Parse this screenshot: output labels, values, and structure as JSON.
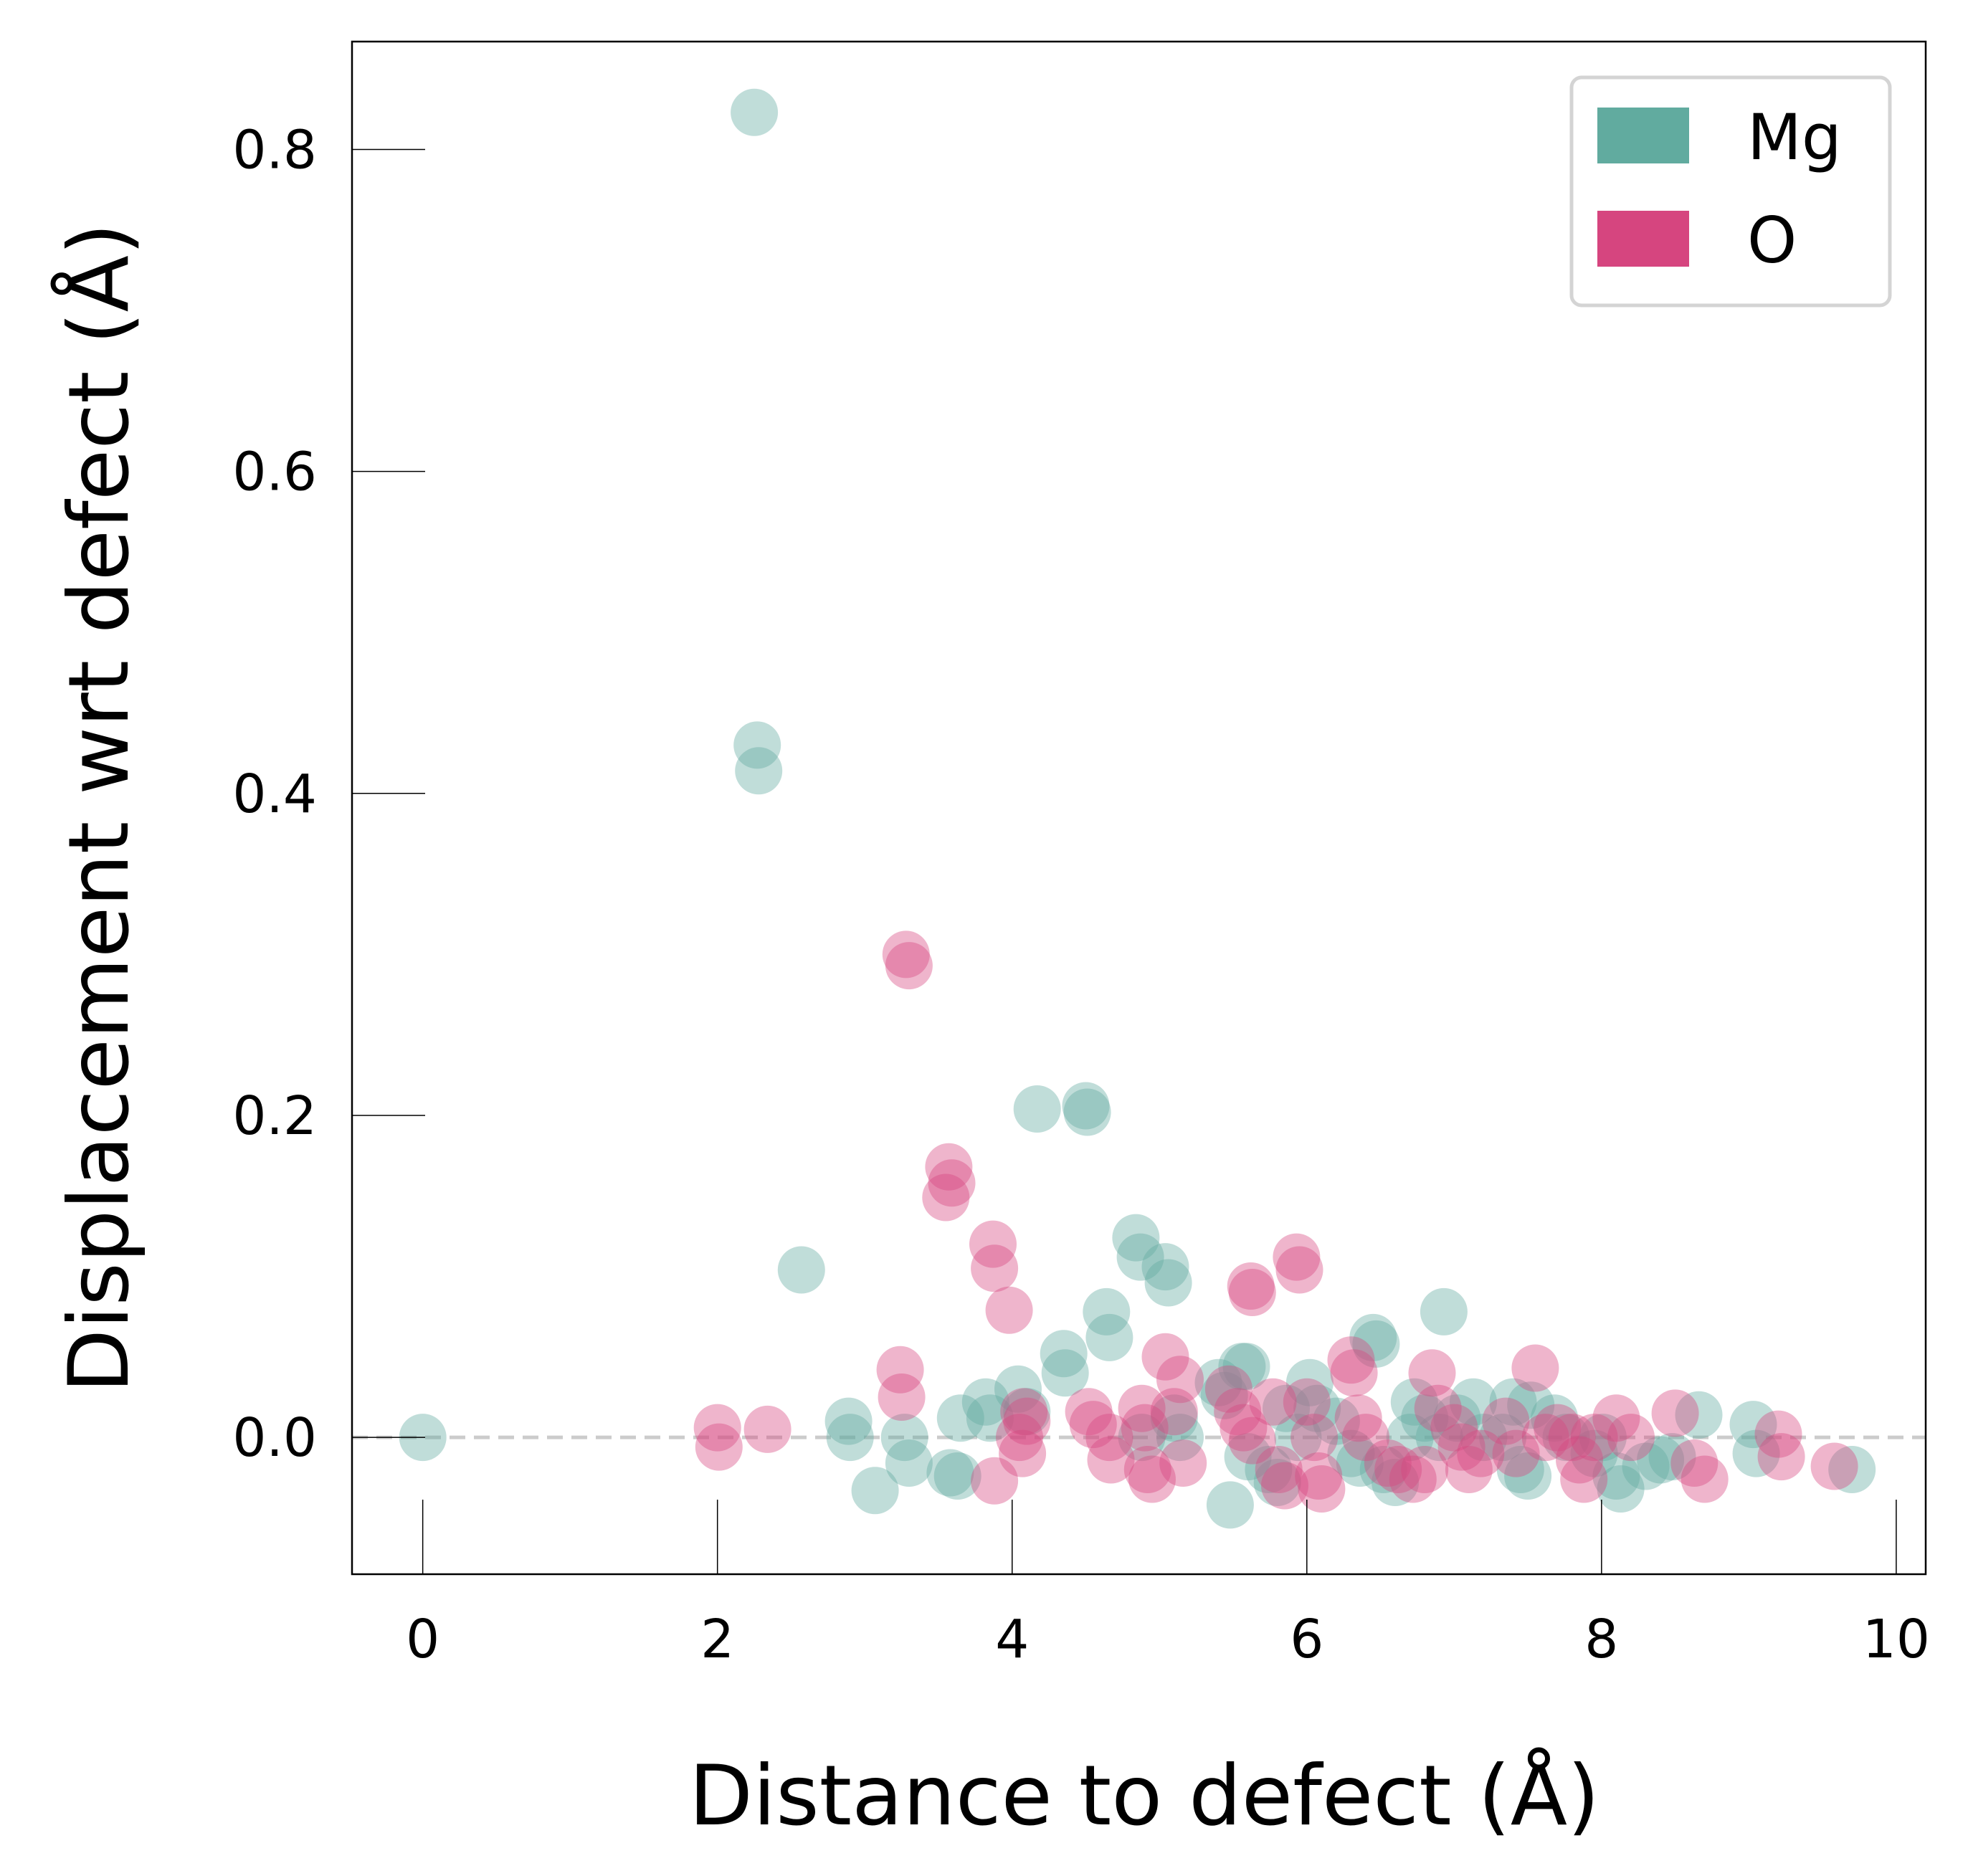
{
  "chart_data": {
    "type": "scatter",
    "title": "",
    "xlabel": "Distance to defect (Å)",
    "ylabel": "Displacement wrt defect (Å)",
    "xlim": [
      -0.48,
      10.2
    ],
    "ylim": [
      -0.085,
      0.867
    ],
    "xticks": [
      0,
      2,
      4,
      6,
      8,
      10
    ],
    "xtick_labels": [
      "0",
      "2",
      "4",
      "6",
      "8",
      "10"
    ],
    "yticks": [
      0.0,
      0.2,
      0.4,
      0.6,
      0.8
    ],
    "ytick_labels": [
      "0.0",
      "0.2",
      "0.4",
      "0.6",
      "0.8"
    ],
    "grid": false,
    "reference_line": {
      "y": 0.0,
      "style": "dashed",
      "color": "#cccccc"
    },
    "legend": {
      "position": "top-right"
    },
    "series": [
      {
        "name": "Mg",
        "color": "#61ab9f",
        "points": [
          [
            0.0,
            0.0
          ],
          [
            2.25,
            0.823
          ],
          [
            2.27,
            0.43
          ],
          [
            2.28,
            0.414
          ],
          [
            2.57,
            0.104
          ],
          [
            2.89,
            0.01
          ],
          [
            2.9,
            0.0
          ],
          [
            3.07,
            -0.033
          ],
          [
            3.27,
            0.0
          ],
          [
            3.3,
            -0.016
          ],
          [
            3.58,
            -0.022
          ],
          [
            3.63,
            -0.024
          ],
          [
            3.65,
            0.012
          ],
          [
            3.82,
            0.022
          ],
          [
            3.85,
            0.012
          ],
          [
            4.04,
            0.03
          ],
          [
            4.1,
            0.016
          ],
          [
            4.17,
            0.204
          ],
          [
            4.35,
            0.052
          ],
          [
            4.36,
            0.04
          ],
          [
            4.5,
            0.206
          ],
          [
            4.51,
            0.202
          ],
          [
            4.64,
            0.078
          ],
          [
            4.66,
            0.062
          ],
          [
            4.84,
            0.124
          ],
          [
            4.87,
            0.112
          ],
          [
            4.88,
            0.0
          ],
          [
            5.04,
            0.106
          ],
          [
            5.06,
            0.096
          ],
          [
            5.1,
            0.012
          ],
          [
            5.14,
            0.0
          ],
          [
            5.4,
            0.034
          ],
          [
            5.44,
            0.026
          ],
          [
            5.48,
            -0.042
          ],
          [
            5.56,
            0.044
          ],
          [
            5.59,
            0.044
          ],
          [
            5.6,
            -0.012
          ],
          [
            5.74,
            -0.02
          ],
          [
            5.8,
            -0.028
          ],
          [
            5.86,
            0.018
          ],
          [
            5.94,
            0.0
          ],
          [
            6.02,
            0.034
          ],
          [
            6.07,
            0.018
          ],
          [
            6.2,
            0.01
          ],
          [
            6.3,
            -0.01
          ],
          [
            6.36,
            -0.016
          ],
          [
            6.45,
            0.062
          ],
          [
            6.47,
            0.058
          ],
          [
            6.52,
            -0.02
          ],
          [
            6.6,
            -0.028
          ],
          [
            6.7,
            0.0
          ],
          [
            6.73,
            0.022
          ],
          [
            6.8,
            0.012
          ],
          [
            6.9,
            0.0
          ],
          [
            6.93,
            0.078
          ],
          [
            7.02,
            0.012
          ],
          [
            7.13,
            0.022
          ],
          [
            7.2,
            0.0
          ],
          [
            7.33,
            0.0
          ],
          [
            7.4,
            0.022
          ],
          [
            7.45,
            -0.02
          ],
          [
            7.5,
            -0.024
          ],
          [
            7.52,
            0.02
          ],
          [
            7.68,
            0.012
          ],
          [
            7.76,
            0.0
          ],
          [
            7.95,
            -0.01
          ],
          [
            8.01,
            0.0
          ],
          [
            8.1,
            -0.024
          ],
          [
            8.13,
            -0.032
          ],
          [
            8.3,
            -0.018
          ],
          [
            8.4,
            -0.014
          ],
          [
            8.48,
            -0.012
          ],
          [
            8.66,
            0.014
          ],
          [
            9.03,
            0.008
          ],
          [
            9.05,
            -0.01
          ],
          [
            9.7,
            -0.02
          ]
        ]
      },
      {
        "name": "O",
        "color": "#d6457f",
        "points": [
          [
            2.0,
            0.006
          ],
          [
            2.01,
            -0.006
          ],
          [
            2.34,
            0.005
          ],
          [
            3.24,
            0.042
          ],
          [
            3.25,
            0.025
          ],
          [
            3.28,
            0.3
          ],
          [
            3.3,
            0.293
          ],
          [
            3.57,
            0.168
          ],
          [
            3.59,
            0.158
          ],
          [
            3.55,
            0.149
          ],
          [
            3.87,
            0.12
          ],
          [
            3.88,
            0.105
          ],
          [
            3.98,
            0.079
          ],
          [
            3.88,
            -0.027
          ],
          [
            4.08,
            0.016
          ],
          [
            4.1,
            0.01
          ],
          [
            4.05,
            0.0
          ],
          [
            4.07,
            -0.01
          ],
          [
            4.52,
            0.016
          ],
          [
            4.55,
            0.008
          ],
          [
            4.66,
            0.0
          ],
          [
            4.67,
            -0.014
          ],
          [
            4.88,
            0.018
          ],
          [
            4.9,
            0.006
          ],
          [
            4.92,
            -0.02
          ],
          [
            4.95,
            -0.026
          ],
          [
            5.04,
            0.05
          ],
          [
            5.1,
            0.016
          ],
          [
            5.14,
            0.036
          ],
          [
            5.16,
            -0.016
          ],
          [
            5.47,
            0.03
          ],
          [
            5.53,
            0.016
          ],
          [
            5.57,
            0.006
          ],
          [
            5.62,
            0.094
          ],
          [
            5.63,
            0.09
          ],
          [
            5.63,
            -0.002
          ],
          [
            5.77,
            0.022
          ],
          [
            5.81,
            -0.02
          ],
          [
            5.85,
            -0.03
          ],
          [
            5.93,
            0.112
          ],
          [
            5.95,
            0.104
          ],
          [
            6.0,
            0.022
          ],
          [
            6.05,
            0.0
          ],
          [
            6.08,
            -0.024
          ],
          [
            6.1,
            -0.032
          ],
          [
            6.3,
            0.048
          ],
          [
            6.32,
            0.04
          ],
          [
            6.35,
            0.012
          ],
          [
            6.4,
            0.0
          ],
          [
            6.55,
            -0.016
          ],
          [
            6.62,
            -0.02
          ],
          [
            6.72,
            -0.026
          ],
          [
            6.8,
            -0.02
          ],
          [
            6.85,
            0.04
          ],
          [
            6.89,
            0.018
          ],
          [
            7.0,
            0.006
          ],
          [
            7.05,
            -0.006
          ],
          [
            7.1,
            -0.02
          ],
          [
            7.18,
            -0.01
          ],
          [
            7.35,
            0.01
          ],
          [
            7.42,
            -0.01
          ],
          [
            7.55,
            0.043
          ],
          [
            7.62,
            0.0
          ],
          [
            7.7,
            0.006
          ],
          [
            7.8,
            0.0
          ],
          [
            7.85,
            -0.014
          ],
          [
            7.88,
            -0.026
          ],
          [
            7.95,
            0.0
          ],
          [
            8.1,
            0.012
          ],
          [
            8.2,
            0.0
          ],
          [
            8.5,
            0.015
          ],
          [
            8.63,
            -0.016
          ],
          [
            8.7,
            -0.026
          ],
          [
            9.2,
            0.002
          ],
          [
            9.22,
            -0.012
          ],
          [
            9.58,
            -0.018
          ]
        ]
      }
    ]
  }
}
